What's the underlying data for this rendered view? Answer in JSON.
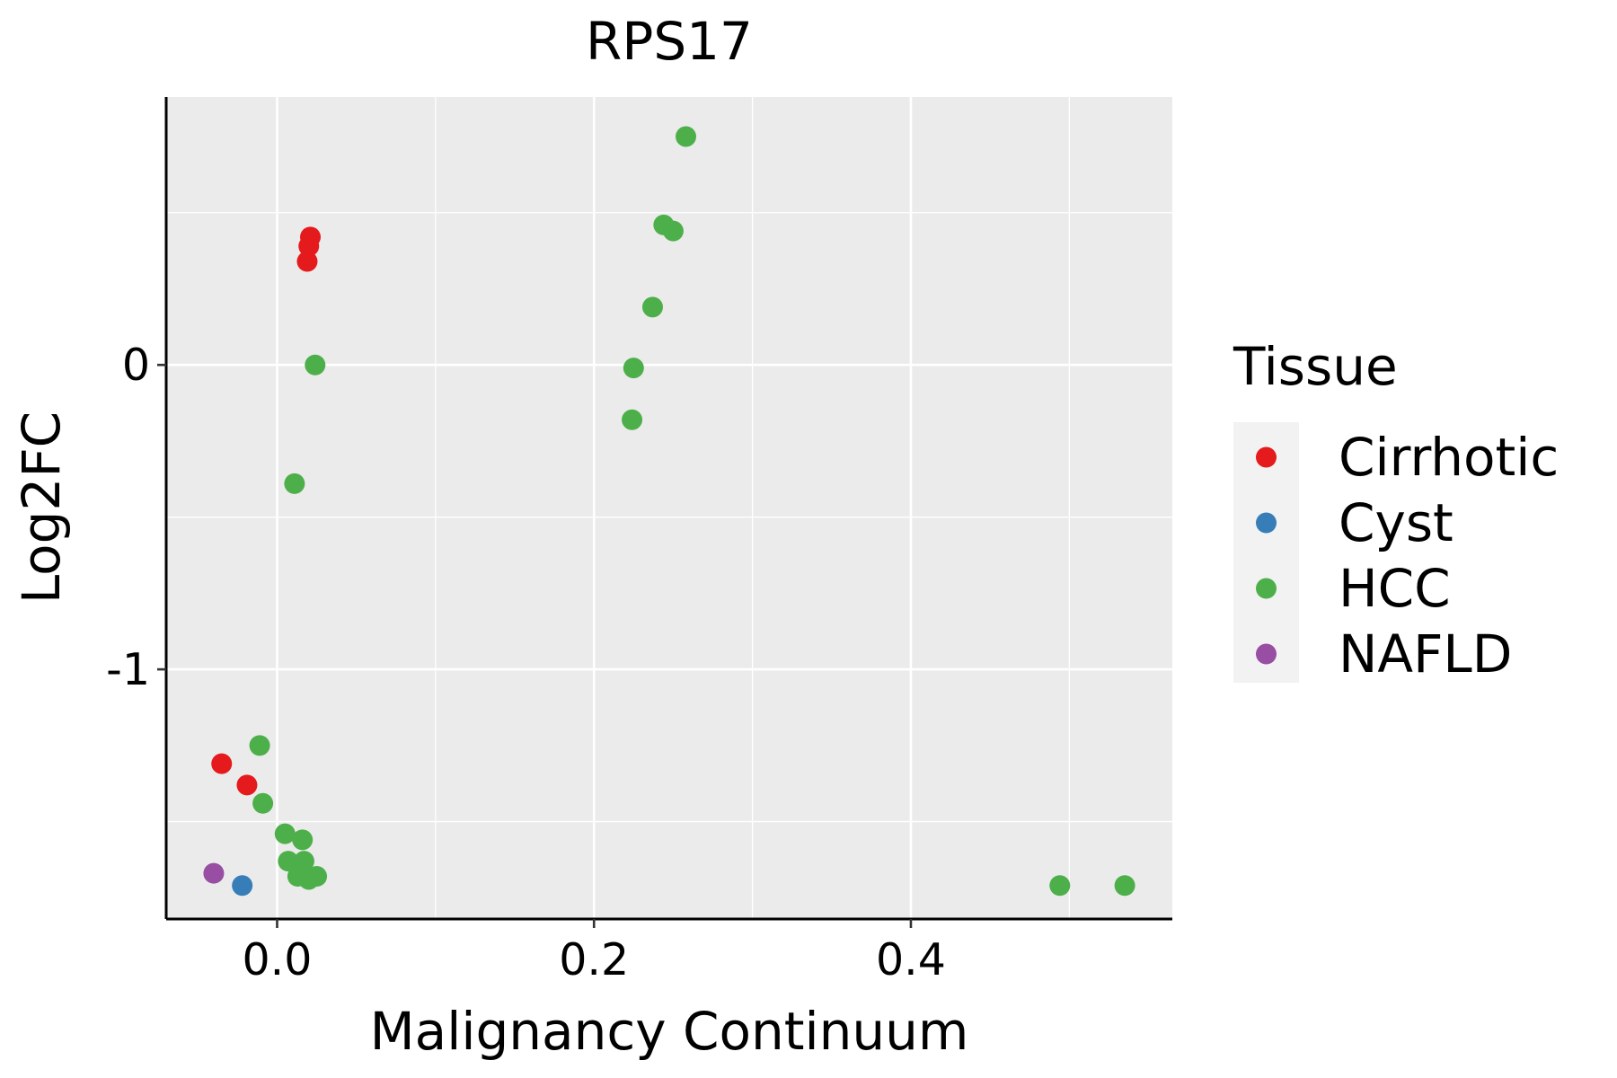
{
  "chart_data": {
    "type": "scatter",
    "title": "RPS17",
    "xlabel": "Malignancy Continuum",
    "ylabel": "Log2FC",
    "xlim": [
      -0.07,
      0.565
    ],
    "ylim": [
      -1.82,
      0.88
    ],
    "x_ticks": [
      0.0,
      0.2,
      0.4
    ],
    "x_tick_labels": [
      "0.0",
      "0.2",
      "0.4"
    ],
    "y_ticks": [
      0,
      -1
    ],
    "y_tick_labels": [
      "0",
      "-1"
    ],
    "x_minor_grid": [
      0.1,
      0.3,
      0.5
    ],
    "y_minor_grid": [
      0.5,
      -0.5,
      -1.5
    ],
    "grid": true,
    "legend": {
      "title": "Tissue",
      "position": "right",
      "entries": [
        {
          "name": "Cirrhotic",
          "color": "#E41A1C"
        },
        {
          "name": "Cyst",
          "color": "#377EB8"
        },
        {
          "name": "HCC",
          "color": "#4DAF4A"
        },
        {
          "name": "NAFLD",
          "color": "#984EA3"
        }
      ]
    },
    "series": [
      {
        "name": "Cirrhotic",
        "color": "#E41A1C",
        "points": [
          {
            "x": 0.021,
            "y": 0.42
          },
          {
            "x": 0.02,
            "y": 0.39
          },
          {
            "x": 0.019,
            "y": 0.34
          },
          {
            "x": -0.035,
            "y": -1.31
          },
          {
            "x": -0.019,
            "y": -1.38
          }
        ]
      },
      {
        "name": "Cyst",
        "color": "#377EB8",
        "points": [
          {
            "x": -0.022,
            "y": -1.71
          }
        ]
      },
      {
        "name": "HCC",
        "color": "#4DAF4A",
        "points": [
          {
            "x": 0.258,
            "y": 0.75
          },
          {
            "x": 0.244,
            "y": 0.46
          },
          {
            "x": 0.25,
            "y": 0.44
          },
          {
            "x": 0.237,
            "y": 0.19
          },
          {
            "x": 0.225,
            "y": -0.01
          },
          {
            "x": 0.224,
            "y": -0.18
          },
          {
            "x": 0.024,
            "y": 0.0
          },
          {
            "x": 0.011,
            "y": -0.39
          },
          {
            "x": -0.011,
            "y": -1.25
          },
          {
            "x": -0.009,
            "y": -1.44
          },
          {
            "x": 0.005,
            "y": -1.54
          },
          {
            "x": 0.016,
            "y": -1.56
          },
          {
            "x": 0.007,
            "y": -1.63
          },
          {
            "x": 0.017,
            "y": -1.63
          },
          {
            "x": 0.013,
            "y": -1.68
          },
          {
            "x": 0.02,
            "y": -1.69
          },
          {
            "x": 0.025,
            "y": -1.68
          },
          {
            "x": 0.494,
            "y": -1.71
          },
          {
            "x": 0.535,
            "y": -1.71
          }
        ]
      },
      {
        "name": "NAFLD",
        "color": "#984EA3",
        "points": [
          {
            "x": -0.04,
            "y": -1.67
          }
        ]
      }
    ]
  }
}
